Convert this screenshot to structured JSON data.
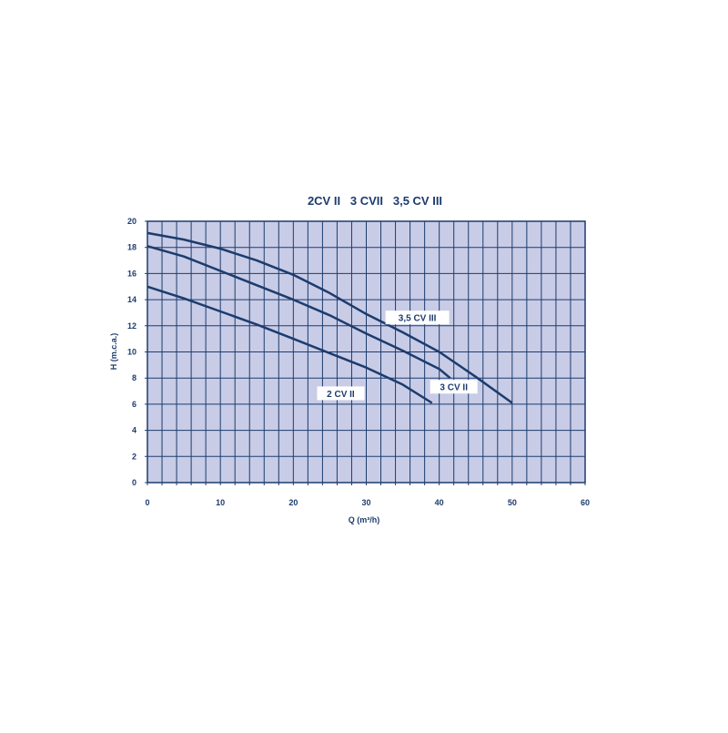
{
  "chart_data": {
    "type": "line",
    "title": "2CV II   3 CVII   3,5 CV III",
    "xlabel": "Q (m³/h)",
    "ylabel": "H (m.c.a.)",
    "xlim": [
      0,
      60
    ],
    "ylim": [
      0,
      20
    ],
    "xticks": [
      0,
      10,
      20,
      30,
      40,
      50,
      60
    ],
    "yticks": [
      0,
      2,
      4,
      6,
      8,
      10,
      12,
      14,
      16,
      18,
      20
    ],
    "grid": true,
    "colors": {
      "background": "#c9cce6",
      "line": "#1c3c6e",
      "grid": "#1c3c6e"
    },
    "series": [
      {
        "name": "3,5 CV III",
        "label_at": [
          37,
          12.6
        ],
        "points": [
          [
            0,
            19.1
          ],
          [
            5,
            18.6
          ],
          [
            10,
            17.9
          ],
          [
            15,
            17
          ],
          [
            20,
            15.9
          ],
          [
            25,
            14.5
          ],
          [
            30,
            12.9
          ],
          [
            35,
            11.5
          ],
          [
            40,
            10
          ],
          [
            45,
            8.1
          ],
          [
            50,
            6.1
          ]
        ]
      },
      {
        "name": "3 CV II",
        "label_at": [
          42,
          7.3
        ],
        "points": [
          [
            0,
            18.1
          ],
          [
            5,
            17.3
          ],
          [
            10,
            16.2
          ],
          [
            15,
            15.1
          ],
          [
            20,
            14
          ],
          [
            25,
            12.8
          ],
          [
            30,
            11.4
          ],
          [
            35,
            10.1
          ],
          [
            40,
            8.7
          ],
          [
            41.5,
            8
          ]
        ]
      },
      {
        "name": "2 CV II",
        "label_at": [
          26.5,
          6.8
        ],
        "points": [
          [
            0,
            15
          ],
          [
            5,
            14.1
          ],
          [
            10,
            13.1
          ],
          [
            15,
            12.1
          ],
          [
            20,
            11
          ],
          [
            25,
            9.9
          ],
          [
            30,
            8.8
          ],
          [
            35,
            7.5
          ],
          [
            39,
            6.1
          ]
        ]
      }
    ]
  }
}
